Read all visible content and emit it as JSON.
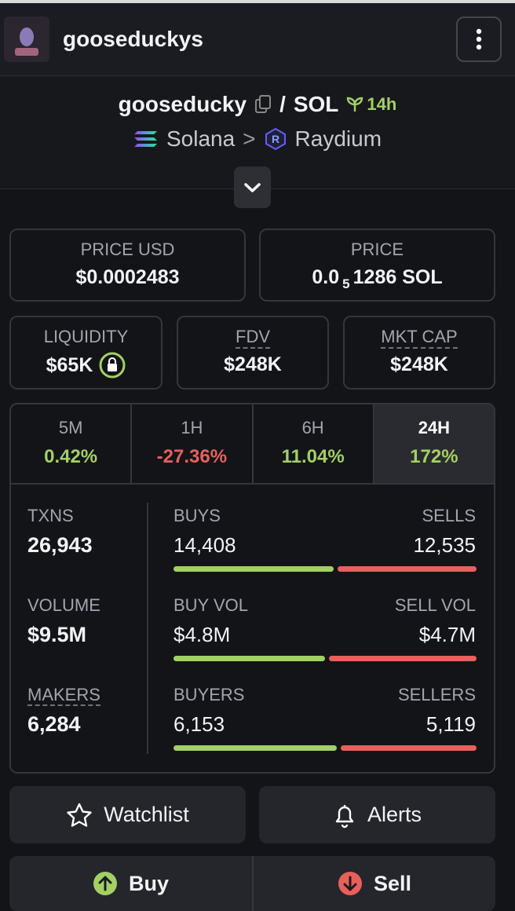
{
  "header": {
    "title": "gooseduckys"
  },
  "pair": {
    "base": "gooseducky",
    "separator": "/",
    "quote": "SOL",
    "age": "14h",
    "chain": "Solana",
    "arrow": ">",
    "dex": "Raydium"
  },
  "price_usd": {
    "label": "PRICE USD",
    "value": "$0.0002483"
  },
  "price": {
    "label": "PRICE",
    "value_prefix": "0.0",
    "value_subscript": "5",
    "value_suffix": "1286 SOL"
  },
  "stats": [
    {
      "label": "LIQUIDITY",
      "value": "$65K"
    },
    {
      "label": "FDV",
      "value": "$248K"
    },
    {
      "label": "MKT CAP",
      "value": "$248K"
    }
  ],
  "timeframes": [
    {
      "label": "5M",
      "change": "0.42%",
      "trend": "up"
    },
    {
      "label": "1H",
      "change": "-27.36%",
      "trend": "down"
    },
    {
      "label": "6H",
      "change": "11.04%",
      "trend": "up"
    },
    {
      "label": "24H",
      "change": "172%",
      "trend": "up",
      "selected": true
    }
  ],
  "metrics": [
    {
      "label": "TXNS",
      "value": "26,943",
      "left_label": "BUYS",
      "left_value": "14,408",
      "right_label": "SELLS",
      "right_value": "12,535"
    },
    {
      "label": "VOLUME",
      "value": "$9.5M",
      "left_label": "BUY VOL",
      "left_value": "$4.8M",
      "right_label": "SELL VOL",
      "right_value": "$4.7M"
    },
    {
      "label": "MAKERS",
      "value": "6,284",
      "left_label": "BUYERS",
      "left_value": "6,153",
      "right_label": "SELLERS",
      "right_value": "5,119"
    }
  ],
  "actions": {
    "watchlist": "Watchlist",
    "alerts": "Alerts",
    "buy": "Buy",
    "sell": "Sell"
  }
}
